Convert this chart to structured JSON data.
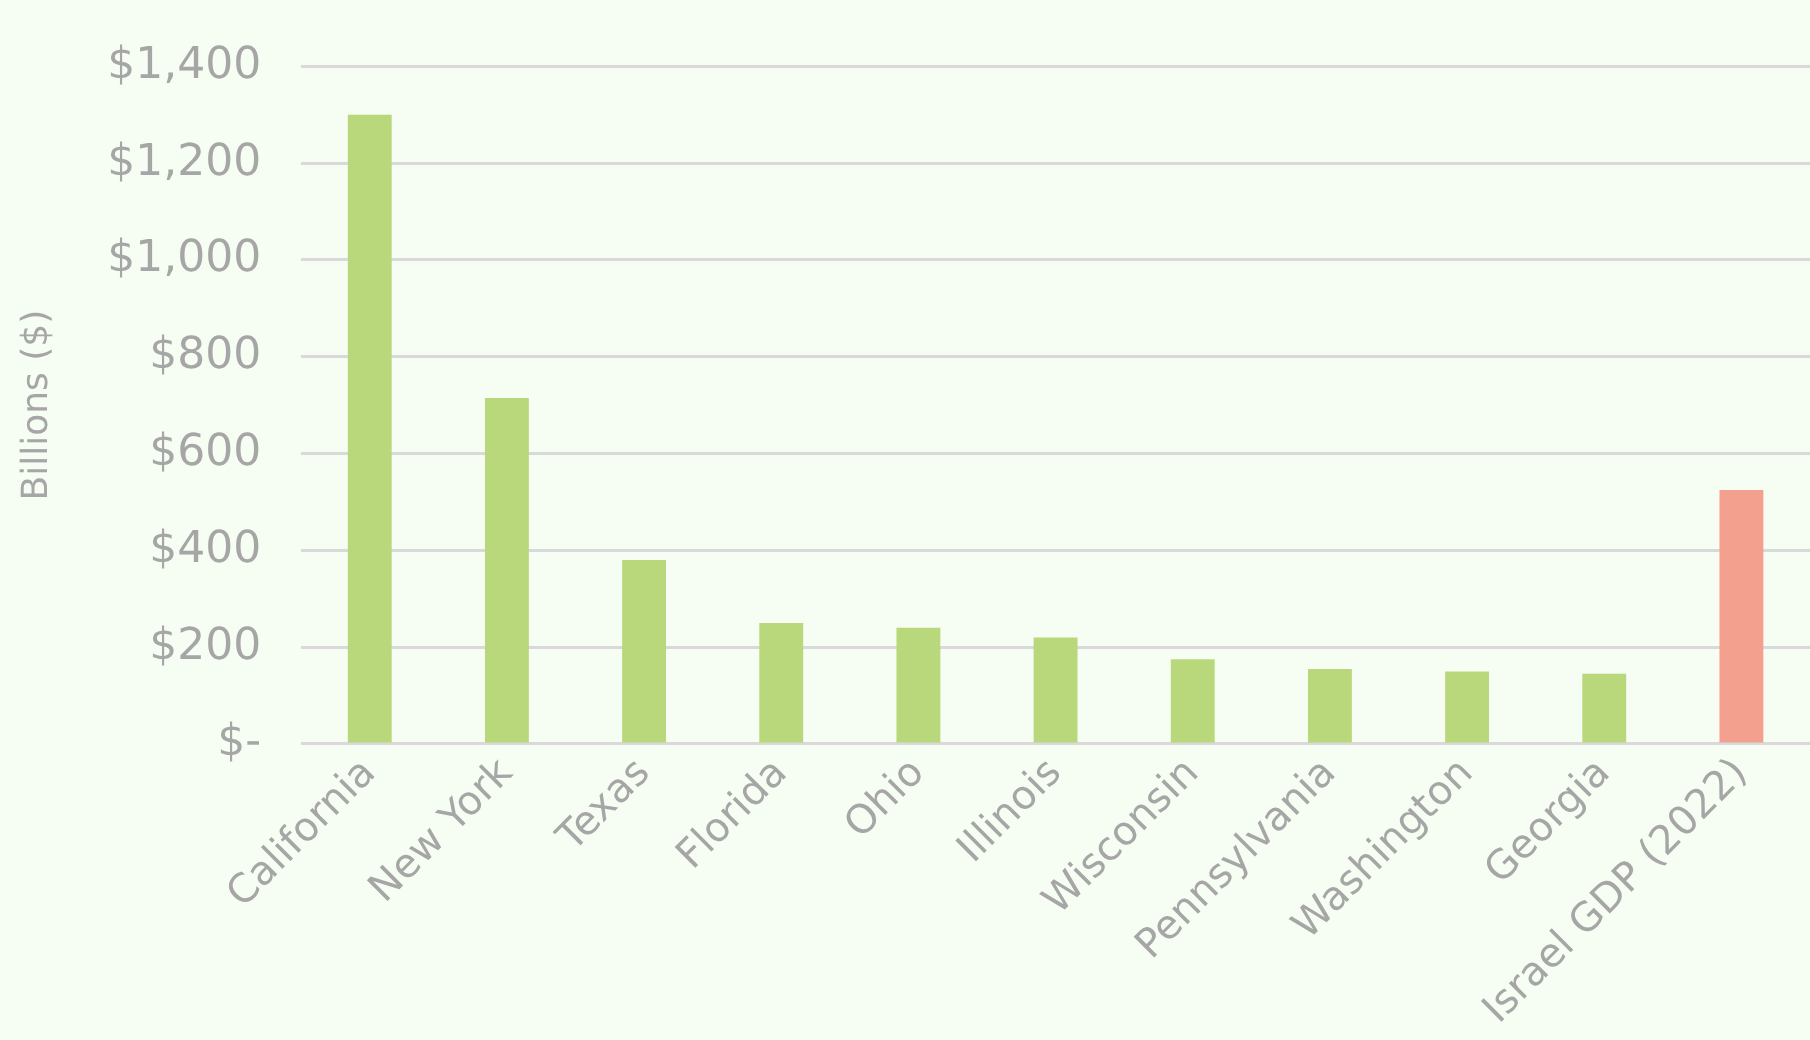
{
  "chart_data": {
    "type": "bar",
    "ylabel": "Billions ($)",
    "categories": [
      "California",
      "New York",
      "Texas",
      "Florida",
      "Ohio",
      "Illinois",
      "Wisconsin",
      "Pennsylvania",
      "Washington",
      "Georgia",
      "Israel GDP (2022)"
    ],
    "values": [
      1300,
      715,
      380,
      250,
      240,
      220,
      175,
      155,
      150,
      145,
      525
    ],
    "colors": [
      "#b9d87b",
      "#b9d87b",
      "#b9d87b",
      "#b9d87b",
      "#b9d87b",
      "#b9d87b",
      "#b9d87b",
      "#b9d87b",
      "#b9d87b",
      "#b9d87b",
      "#f4a08f"
    ],
    "ylim": [
      0,
      1400
    ],
    "yticks": [
      {
        "value": 0,
        "label": "$-"
      },
      {
        "value": 200,
        "label": "$200"
      },
      {
        "value": 400,
        "label": "$400"
      },
      {
        "value": 600,
        "label": "$600"
      },
      {
        "value": 800,
        "label": "$800"
      },
      {
        "value": 1000,
        "label": "$1,000"
      },
      {
        "value": 1200,
        "label": "$1,200"
      },
      {
        "value": 1400,
        "label": "$1,400"
      }
    ],
    "grid": "y",
    "legend": false
  }
}
